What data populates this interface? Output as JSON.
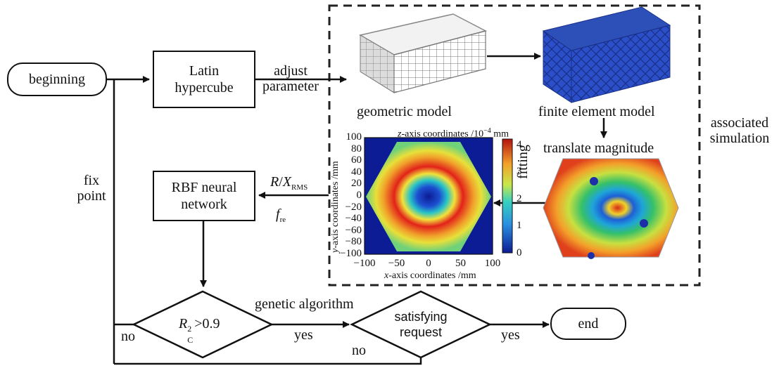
{
  "nodes": {
    "beginning": "beginning",
    "latin_line1": "Latin",
    "latin_line2": "hypercube",
    "rbf_line1": "RBF neural",
    "rbf_line2": "network",
    "decision1_R": "R",
    "decision1_sup": "2",
    "decision1_sub": "C",
    "decision1_rest": ">0.9",
    "decision2_line1": "satisfying",
    "decision2_line2": "request",
    "end": "end"
  },
  "edge_labels": {
    "adjust": "adjust",
    "parameter": "parameter",
    "fix": "fix",
    "point": "point",
    "R_over": "R",
    "X": "X",
    "X_sub": "RMS",
    "f": "f",
    "f_sub": "re",
    "genetic": "genetic algorithm",
    "no1": "no",
    "yes1": "yes",
    "no2": "no",
    "yes2": "yes",
    "fitting": "fitting",
    "translate": "translate magnitude"
  },
  "simulation": {
    "caption_geometric": "geometric model",
    "caption_fem": "finite element model",
    "associated": "associated",
    "simulation": "simulation"
  },
  "contour_plot": {
    "title_var": "z",
    "title_rest": "-axis coordinates /10",
    "title_exp": "−4",
    "title_unit": " mm",
    "xlabel_var": "x",
    "xlabel_rest": "-axis coordinates /mm",
    "ylabel_var": "y",
    "ylabel_rest": "-axis coordinates /mm",
    "xticks": [
      "−100",
      "−50",
      "0",
      "50",
      "100"
    ],
    "yticks": [
      "100",
      "80",
      "60",
      "40",
      "20",
      "0",
      "−20",
      "−40",
      "−60",
      "−80",
      "−100"
    ],
    "cbar_ticks": [
      "4",
      "3",
      "2",
      "1",
      "0"
    ],
    "colors": {
      "low": "#0b1c94",
      "mid": "#27c4c8",
      "high": "#e2221a"
    }
  }
}
